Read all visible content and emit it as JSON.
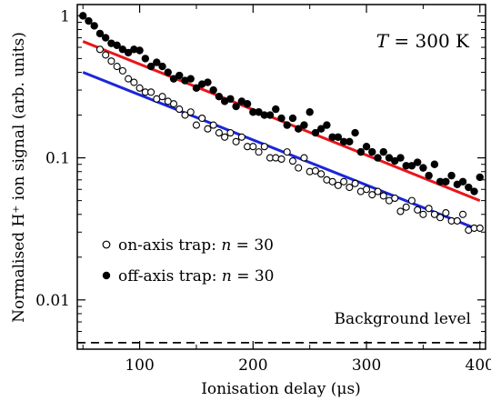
{
  "chart_data": {
    "type": "scatter",
    "title": "",
    "xlabel": "Ionisation delay (μs)",
    "ylabel": "Normalised H⁺ ion signal (arb. units)",
    "xlim": [
      45,
      405
    ],
    "ylim": [
      0.0045,
      1.2
    ],
    "xscale": "linear",
    "yscale": "log",
    "x_ticks": [
      100,
      200,
      300,
      400
    ],
    "x_tick_labels": [
      "100",
      "200",
      "300",
      "400"
    ],
    "y_ticks": [
      0.01,
      0.1,
      1
    ],
    "y_tick_labels": [
      "0.01",
      "0.1",
      "1"
    ],
    "grid": false,
    "legend_position": "left-center",
    "annotation": {
      "T_symbol": "T",
      "T_value": " = 300 K"
    },
    "background": {
      "label": "Background level",
      "value": 0.005,
      "style": "dashed",
      "color": "#000000"
    },
    "series": [
      {
        "name": "off-axis trap: n = 30",
        "marker": "filled-circle",
        "color": "#000000",
        "x": [
          50,
          55,
          60,
          65,
          70,
          75,
          80,
          85,
          90,
          95,
          100,
          105,
          110,
          115,
          120,
          125,
          130,
          135,
          140,
          145,
          150,
          155,
          160,
          165,
          170,
          175,
          180,
          185,
          190,
          195,
          200,
          205,
          210,
          215,
          220,
          225,
          230,
          235,
          240,
          245,
          250,
          255,
          260,
          265,
          270,
          275,
          280,
          285,
          290,
          295,
          300,
          305,
          310,
          315,
          320,
          325,
          330,
          335,
          340,
          345,
          350,
          355,
          360,
          365,
          370,
          375,
          380,
          385,
          390,
          395,
          400
        ],
        "y": [
          1.0,
          0.92,
          0.85,
          0.75,
          0.7,
          0.64,
          0.62,
          0.58,
          0.55,
          0.58,
          0.57,
          0.5,
          0.44,
          0.47,
          0.44,
          0.4,
          0.36,
          0.38,
          0.35,
          0.36,
          0.31,
          0.33,
          0.34,
          0.3,
          0.27,
          0.25,
          0.26,
          0.23,
          0.25,
          0.24,
          0.21,
          0.21,
          0.2,
          0.2,
          0.22,
          0.19,
          0.17,
          0.19,
          0.16,
          0.17,
          0.21,
          0.15,
          0.16,
          0.17,
          0.14,
          0.14,
          0.13,
          0.13,
          0.15,
          0.11,
          0.12,
          0.11,
          0.1,
          0.11,
          0.1,
          0.095,
          0.1,
          0.088,
          0.088,
          0.093,
          0.085,
          0.075,
          0.09,
          0.068,
          0.068,
          0.075,
          0.065,
          0.068,
          0.062,
          0.058,
          0.073
        ]
      },
      {
        "name": "on-axis trap: n = 30",
        "marker": "open-circle",
        "color": "#000000",
        "x": [
          65,
          70,
          75,
          80,
          85,
          90,
          95,
          100,
          105,
          110,
          115,
          120,
          125,
          130,
          135,
          140,
          145,
          150,
          155,
          160,
          165,
          170,
          175,
          180,
          185,
          190,
          195,
          200,
          205,
          210,
          215,
          220,
          225,
          230,
          235,
          240,
          245,
          250,
          255,
          260,
          265,
          270,
          275,
          280,
          285,
          290,
          295,
          300,
          305,
          310,
          315,
          320,
          325,
          330,
          335,
          340,
          345,
          350,
          355,
          360,
          365,
          370,
          375,
          380,
          385,
          390,
          395,
          400
        ],
        "y": [
          0.58,
          0.53,
          0.48,
          0.44,
          0.41,
          0.36,
          0.34,
          0.31,
          0.29,
          0.29,
          0.26,
          0.27,
          0.25,
          0.24,
          0.22,
          0.2,
          0.21,
          0.17,
          0.19,
          0.16,
          0.17,
          0.15,
          0.14,
          0.15,
          0.13,
          0.14,
          0.12,
          0.12,
          0.11,
          0.12,
          0.1,
          0.1,
          0.098,
          0.11,
          0.095,
          0.085,
          0.1,
          0.08,
          0.081,
          0.077,
          0.07,
          0.068,
          0.064,
          0.068,
          0.062,
          0.066,
          0.058,
          0.06,
          0.055,
          0.058,
          0.054,
          0.05,
          0.052,
          0.042,
          0.045,
          0.05,
          0.043,
          0.04,
          0.044,
          0.04,
          0.038,
          0.041,
          0.036,
          0.036,
          0.04,
          0.031,
          0.032,
          0.032
        ]
      }
    ],
    "fits": [
      {
        "color": "#e8161b",
        "x": [
          50,
          400
        ],
        "y": [
          0.66,
          0.05
        ]
      },
      {
        "color": "#1a26d9",
        "x": [
          50,
          400
        ],
        "y": [
          0.4,
          0.031
        ]
      }
    ]
  }
}
